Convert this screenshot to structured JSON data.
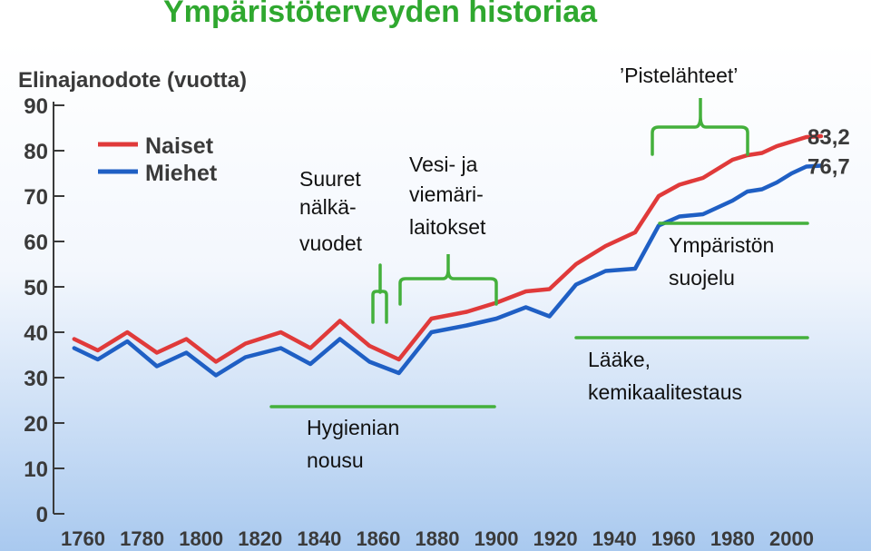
{
  "title": "Ympäristöterveyden historiaa",
  "colors": {
    "title": "#2fa82f",
    "women": "#e03a3a",
    "men": "#1f5fc4",
    "bracket": "#44b03c",
    "background_top": "#ffffff",
    "background_bottom": "#a9c9ef"
  },
  "chart_data": {
    "type": "line",
    "ylabel": "Elinajanodote (vuotta)",
    "xlim": [
      1750,
      2010
    ],
    "ylim": [
      0,
      90
    ],
    "xticks": [
      1760,
      1780,
      1800,
      1820,
      1840,
      1860,
      1880,
      1900,
      1920,
      1940,
      1960,
      1980,
      2000
    ],
    "yticks": [
      0,
      10,
      20,
      30,
      40,
      50,
      60,
      70,
      80,
      90
    ],
    "grid": false,
    "legend": {
      "position": "top-left"
    },
    "series": [
      {
        "name": "Naiset",
        "color": "#e03a3a",
        "end_label": "83,2",
        "points": [
          [
            1757,
            38.5
          ],
          [
            1765,
            36
          ],
          [
            1775,
            40
          ],
          [
            1785,
            35.5
          ],
          [
            1795,
            38.5
          ],
          [
            1805,
            33.5
          ],
          [
            1815,
            37.5
          ],
          [
            1827,
            40
          ],
          [
            1837,
            36.5
          ],
          [
            1847,
            42.5
          ],
          [
            1857,
            37
          ],
          [
            1867,
            34
          ],
          [
            1878,
            43
          ],
          [
            1890,
            44.5
          ],
          [
            1900,
            46.5
          ],
          [
            1910,
            49
          ],
          [
            1918,
            49.5
          ],
          [
            1927,
            55
          ],
          [
            1937,
            59
          ],
          [
            1947,
            62
          ],
          [
            1955,
            70
          ],
          [
            1962,
            72.5
          ],
          [
            1970,
            74
          ],
          [
            1980,
            78
          ],
          [
            1985,
            79
          ],
          [
            1990,
            79.5
          ],
          [
            1995,
            81
          ],
          [
            2000,
            82
          ],
          [
            2005,
            83
          ],
          [
            2010,
            83.2
          ]
        ]
      },
      {
        "name": "Miehet",
        "color": "#1f5fc4",
        "end_label": "76,7",
        "points": [
          [
            1757,
            36.5
          ],
          [
            1765,
            34
          ],
          [
            1775,
            38
          ],
          [
            1785,
            32.5
          ],
          [
            1795,
            35.5
          ],
          [
            1805,
            30.5
          ],
          [
            1815,
            34.5
          ],
          [
            1827,
            36.5
          ],
          [
            1837,
            33
          ],
          [
            1847,
            38.5
          ],
          [
            1857,
            33.5
          ],
          [
            1867,
            31
          ],
          [
            1878,
            40
          ],
          [
            1890,
            41.5
          ],
          [
            1900,
            43
          ],
          [
            1910,
            45.5
          ],
          [
            1918,
            43.5
          ],
          [
            1927,
            50.5
          ],
          [
            1937,
            53.5
          ],
          [
            1947,
            54
          ],
          [
            1955,
            63.5
          ],
          [
            1962,
            65.5
          ],
          [
            1970,
            66
          ],
          [
            1980,
            69
          ],
          [
            1985,
            71
          ],
          [
            1990,
            71.5
          ],
          [
            1995,
            73
          ],
          [
            2000,
            75
          ],
          [
            2005,
            76.5
          ],
          [
            2010,
            76.7
          ]
        ]
      }
    ],
    "annotations": [
      {
        "text": [
          "Suuret",
          "nälkä-",
          "vuodet"
        ],
        "marker": "bracket",
        "x_range": [
          1864,
          1870
        ]
      },
      {
        "text": [
          "Vesi- ja",
          "viemäri-",
          "laitokset"
        ],
        "marker": "bracket",
        "x_range": [
          1868,
          1916
        ]
      },
      {
        "text": [
          "Hygienian",
          "nousu"
        ],
        "marker": "underline",
        "x_range": [
          1820,
          1916
        ]
      },
      {
        "text": [
          "’Pistelähteet’"
        ],
        "marker": "bracket",
        "x_range": [
          1955,
          1997
        ]
      },
      {
        "text": [
          "Ympäristön",
          "suojelu"
        ],
        "marker": "overline",
        "x_range": [
          1962,
          2010
        ]
      },
      {
        "text": [
          "Lääke,",
          "kemikaalitestaus"
        ],
        "marker": "overline",
        "x_range": [
          1937,
          2010
        ]
      }
    ]
  }
}
